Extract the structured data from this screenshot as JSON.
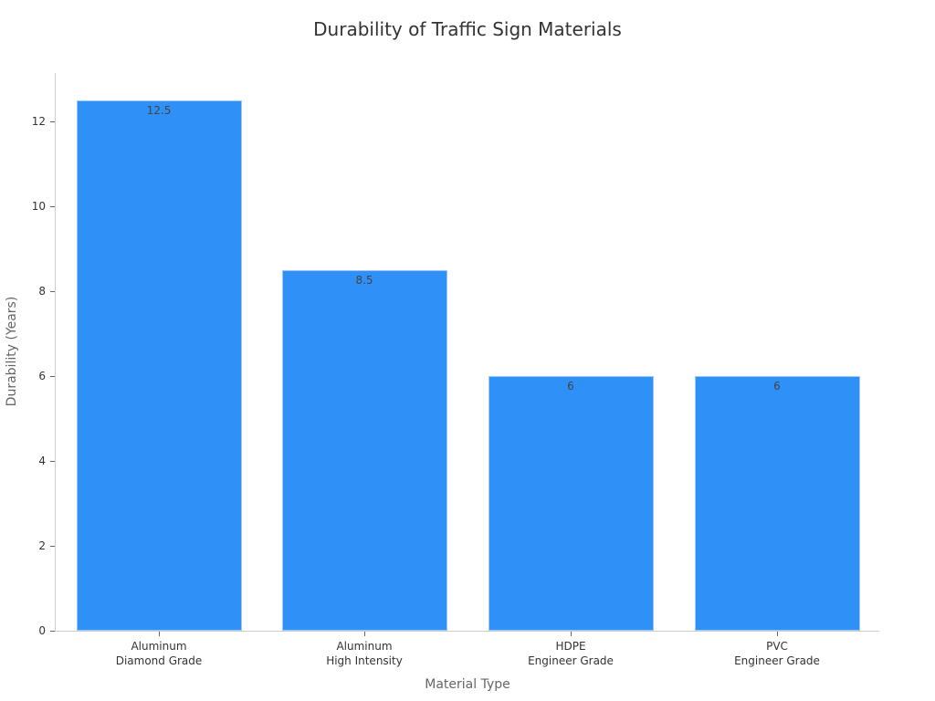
{
  "chart_data": {
    "type": "bar",
    "title": "Durability of Traffic Sign Materials",
    "xlabel": "Material Type",
    "ylabel": "Durability (Years)",
    "categories": [
      "Aluminum\nDiamond Grade",
      "Aluminum\nHigh Intensity",
      "HDPE\nEngineer Grade",
      "PVC\nEngineer Grade"
    ],
    "category_lines": [
      [
        "Aluminum",
        "Diamond Grade"
      ],
      [
        "Aluminum",
        "High Intensity"
      ],
      [
        "HDPE",
        "Engineer Grade"
      ],
      [
        "PVC",
        "Engineer Grade"
      ]
    ],
    "values": [
      12.5,
      8.5,
      6,
      6
    ],
    "value_labels": [
      "12.5",
      "8.5",
      "6",
      "6"
    ],
    "ylim": [
      0,
      13.1
    ],
    "yticks": [
      0,
      2,
      4,
      6,
      8,
      10,
      12
    ],
    "ytick_labels": [
      "0",
      "2",
      "4",
      "6",
      "8",
      "10",
      "12"
    ],
    "grid": false,
    "legend": null,
    "bar_color": "#2f90f8"
  }
}
